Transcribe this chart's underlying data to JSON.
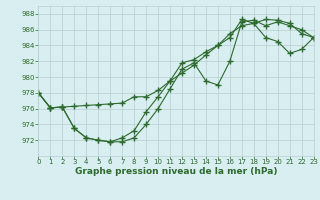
{
  "line1_x": [
    0,
    1,
    2,
    3,
    4,
    5,
    6,
    7,
    8,
    9,
    10,
    11,
    12,
    13,
    14,
    15,
    16,
    17,
    18,
    19,
    20,
    21,
    22,
    23
  ],
  "line1_y": [
    978.0,
    976.1,
    976.2,
    976.3,
    976.4,
    976.5,
    976.6,
    976.7,
    977.5,
    977.5,
    978.3,
    979.5,
    980.5,
    981.5,
    982.8,
    984.0,
    985.5,
    986.5,
    986.8,
    987.3,
    987.2,
    986.8,
    985.5,
    985.0
  ],
  "line2_x": [
    0,
    1,
    2,
    3,
    4,
    5,
    6,
    7,
    8,
    9,
    10,
    11,
    12,
    13,
    14,
    15,
    16,
    17,
    18,
    19,
    20,
    21,
    22,
    23
  ],
  "line2_y": [
    978.0,
    976.1,
    976.2,
    973.5,
    972.3,
    972.0,
    971.8,
    971.8,
    972.3,
    974.0,
    976.0,
    978.5,
    981.0,
    981.8,
    979.5,
    979.0,
    982.0,
    987.0,
    987.2,
    986.5,
    987.0,
    986.5,
    986.0,
    985.0
  ],
  "line3_x": [
    0,
    1,
    2,
    3,
    4,
    5,
    6,
    7,
    8,
    9,
    10,
    11,
    12,
    13,
    14,
    15,
    16,
    17,
    18,
    19,
    20,
    21,
    22,
    23
  ],
  "line3_y": [
    978.0,
    976.1,
    976.2,
    973.5,
    972.3,
    972.0,
    971.8,
    972.3,
    973.2,
    975.6,
    977.5,
    979.5,
    981.8,
    982.2,
    983.2,
    984.0,
    985.0,
    987.3,
    986.8,
    985.0,
    984.5,
    983.0,
    983.5,
    985.0
  ],
  "line_color": "#2d6a2d",
  "marker": "+",
  "markersize": 4,
  "markeredgewidth": 1.0,
  "linewidth": 0.8,
  "bg_color": "#d8eef0",
  "grid_color": "#b8cfd0",
  "xlabel": "Graphe pression niveau de la mer (hPa)",
  "xlabel_fontsize": 6.5,
  "xlabel_color": "#2d6a2d",
  "tick_color": "#2d6a2d",
  "tick_fontsize": 5.0,
  "xlim": [
    0,
    23
  ],
  "ylim": [
    970,
    989
  ],
  "yticks": [
    972,
    974,
    976,
    978,
    980,
    982,
    984,
    986,
    988
  ],
  "xticks": [
    0,
    1,
    2,
    3,
    4,
    5,
    6,
    7,
    8,
    9,
    10,
    11,
    12,
    13,
    14,
    15,
    16,
    17,
    18,
    19,
    20,
    21,
    22,
    23
  ]
}
